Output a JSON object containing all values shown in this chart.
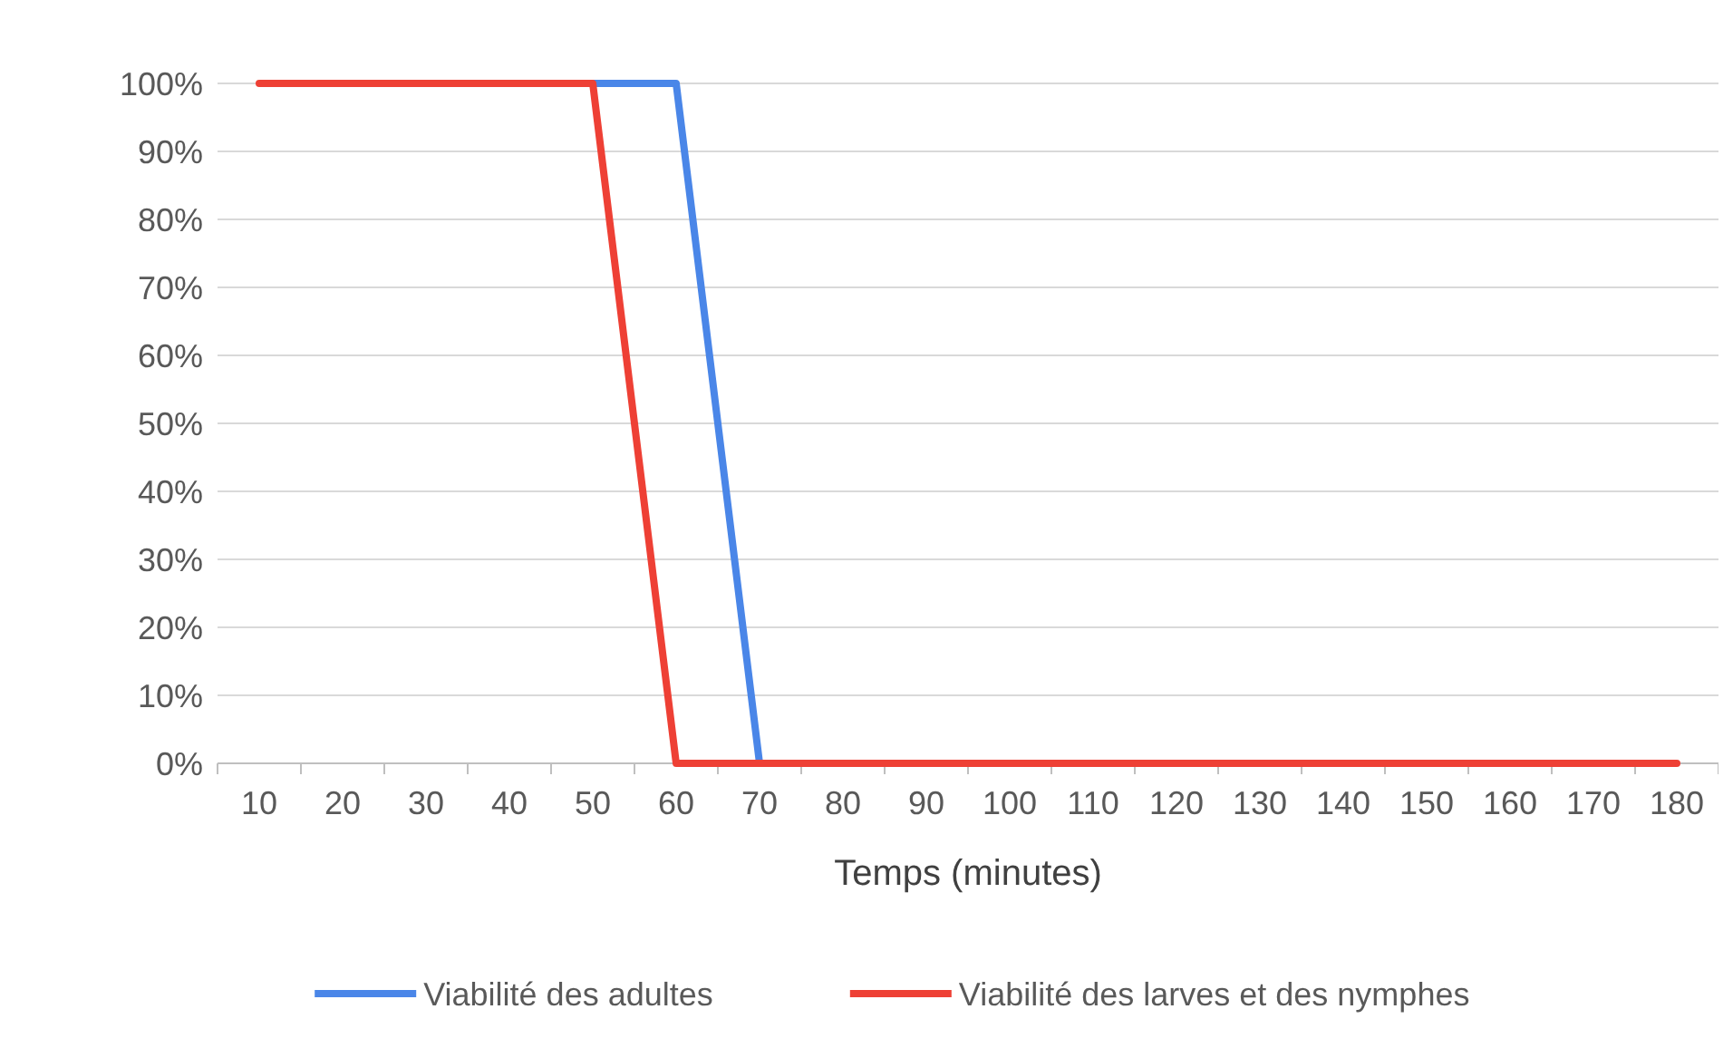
{
  "chart_data": {
    "type": "line",
    "xlabel": "Temps (minutes)",
    "categories": [
      "10",
      "20",
      "30",
      "40",
      "50",
      "60",
      "70",
      "80",
      "90",
      "100",
      "110",
      "120",
      "130",
      "140",
      "150",
      "160",
      "170",
      "180"
    ],
    "series": [
      {
        "name": "Viabilité des adultes",
        "color": "#4a86e8",
        "values": [
          null,
          null,
          null,
          null,
          100,
          100,
          0,
          null,
          null,
          null,
          null,
          null,
          null,
          null,
          null,
          null,
          null,
          null
        ]
      },
      {
        "name": "Viabilité des larves et des nymphes",
        "color": "#ee4035",
        "values": [
          100,
          100,
          100,
          100,
          100,
          0,
          0,
          0,
          0,
          0,
          0,
          0,
          0,
          0,
          0,
          0,
          0,
          0
        ]
      }
    ],
    "ylim": [
      0,
      100
    ],
    "yticks": [
      {
        "value": 0,
        "label": "0%"
      },
      {
        "value": 10,
        "label": "10%"
      },
      {
        "value": 20,
        "label": "20%"
      },
      {
        "value": 30,
        "label": "30%"
      },
      {
        "value": 40,
        "label": "40%"
      },
      {
        "value": 50,
        "label": "50%"
      },
      {
        "value": 60,
        "label": "60%"
      },
      {
        "value": 70,
        "label": "70%"
      },
      {
        "value": 80,
        "label": "80%"
      },
      {
        "value": 90,
        "label": "90%"
      },
      {
        "value": 100,
        "label": "100%"
      }
    ],
    "grid": "y",
    "legend": "bottom",
    "marker": "none",
    "line_style": "solid"
  }
}
